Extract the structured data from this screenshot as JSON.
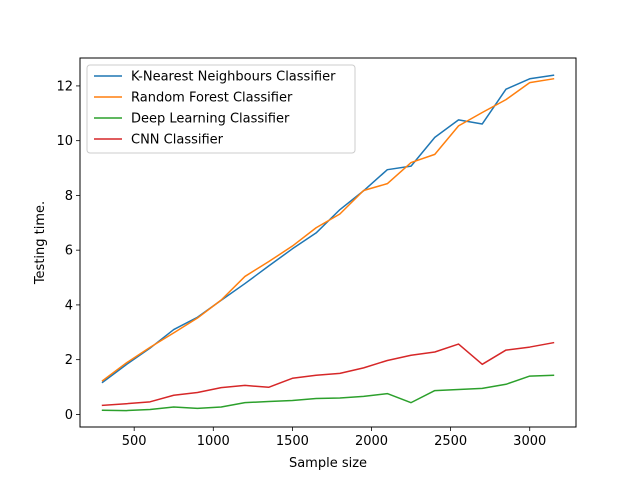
{
  "chart_data": {
    "type": "line",
    "title": "",
    "xlabel": "Sample size",
    "ylabel": "Testing time.",
    "xlim": [
      157.5,
      3292.5
    ],
    "ylim": [
      -0.46,
      13.02
    ],
    "xticks": [
      500,
      1000,
      1500,
      2000,
      2500,
      3000
    ],
    "yticks": [
      0,
      2,
      4,
      6,
      8,
      10,
      12
    ],
    "grid": false,
    "legend": "top-left",
    "x": [
      300,
      450,
      600,
      750,
      900,
      1050,
      1200,
      1350,
      1500,
      1650,
      1800,
      1950,
      2100,
      2250,
      2400,
      2550,
      2700,
      2850,
      3000,
      3150
    ],
    "series": [
      {
        "name": "K-Nearest Neighbours Classifier",
        "color": "#1f77b4",
        "values": [
          1.17,
          1.82,
          2.42,
          3.1,
          3.55,
          4.17,
          4.78,
          5.42,
          6.05,
          6.63,
          7.48,
          8.17,
          8.94,
          9.07,
          10.12,
          10.76,
          10.61,
          11.88,
          12.26,
          12.39
        ]
      },
      {
        "name": "Random Forest Classifier",
        "color": "#ff7f0e",
        "values": [
          1.23,
          1.88,
          2.45,
          2.98,
          3.52,
          4.18,
          5.04,
          5.58,
          6.15,
          6.82,
          7.32,
          8.18,
          8.43,
          9.2,
          9.5,
          10.54,
          11.03,
          11.5,
          12.12,
          12.26
        ]
      },
      {
        "name": "Deep Learning Classifier",
        "color": "#2ca02c",
        "values": [
          0.15,
          0.14,
          0.18,
          0.27,
          0.22,
          0.27,
          0.43,
          0.47,
          0.51,
          0.58,
          0.6,
          0.66,
          0.76,
          0.43,
          0.87,
          0.91,
          0.95,
          1.1,
          1.4,
          1.43
        ]
      },
      {
        "name": "CNN Classifier",
        "color": "#d62728",
        "values": [
          0.33,
          0.39,
          0.46,
          0.7,
          0.8,
          0.98,
          1.06,
          0.99,
          1.32,
          1.43,
          1.5,
          1.7,
          1.97,
          2.16,
          2.28,
          2.57,
          1.83,
          2.35,
          2.46,
          2.62
        ]
      }
    ]
  }
}
